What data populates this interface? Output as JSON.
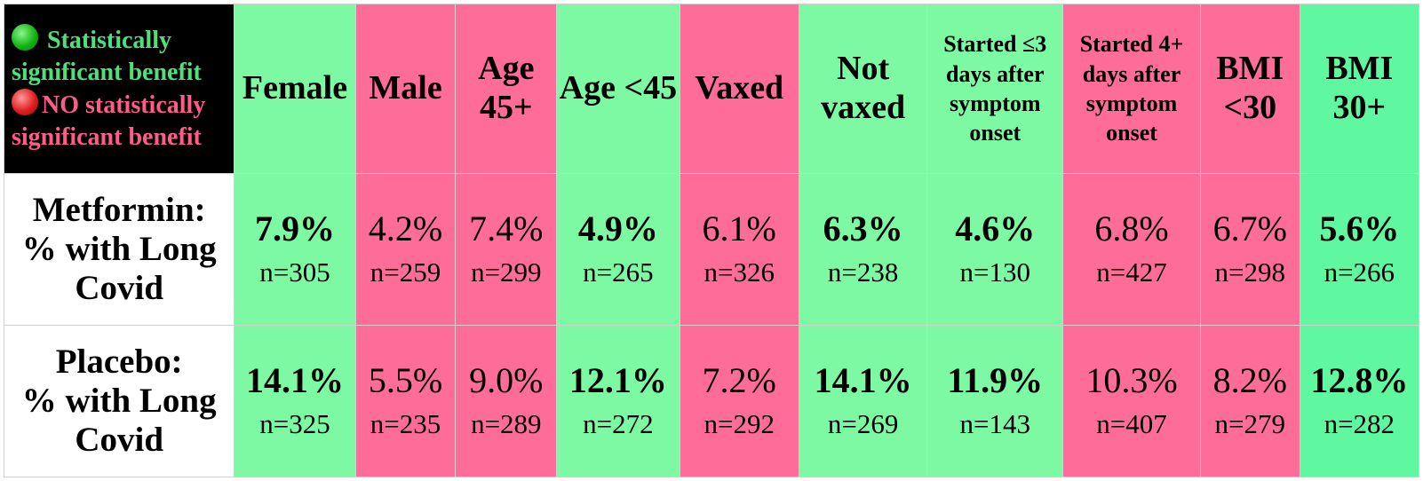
{
  "colors": {
    "significant": "#7cf9a2",
    "not_significant": "#fe6d99",
    "significant_alt": "#5ff7a0",
    "legend_green": "#4fe07d",
    "legend_red": "#ff5c8a"
  },
  "legend": {
    "significant_label": "Statistically",
    "significant_label2": "significant benefit",
    "not_significant_label": "NO statistically",
    "not_significant_label2": "significant benefit"
  },
  "columns": [
    {
      "label": "Female",
      "significant": true
    },
    {
      "label": "Male",
      "significant": false
    },
    {
      "label": "Age 45+",
      "significant": false
    },
    {
      "label": "Age <45",
      "significant": true
    },
    {
      "label": "Vaxed",
      "significant": false
    },
    {
      "label": "Not vaxed",
      "significant": true
    },
    {
      "label": "Started ≤3 days after symptom onset",
      "significant": true
    },
    {
      "label": "Started 4+ days after symptom onset",
      "significant": false
    },
    {
      "label": "BMI <30",
      "significant": false
    },
    {
      "label": "BMI 30+",
      "significant": true
    }
  ],
  "rows": [
    {
      "label_line1": "Metformin:",
      "label_line2": "% with Long",
      "label_line3": "Covid",
      "cells": [
        {
          "pct": "7.9%",
          "n": "n=305"
        },
        {
          "pct": "4.2%",
          "n": "n=259"
        },
        {
          "pct": "7.4%",
          "n": "n=299"
        },
        {
          "pct": "4.9%",
          "n": "n=265"
        },
        {
          "pct": "6.1%",
          "n": "n=326"
        },
        {
          "pct": "6.3%",
          "n": "n=238"
        },
        {
          "pct": "4.6%",
          "n": "n=130"
        },
        {
          "pct": "6.8%",
          "n": "n=427"
        },
        {
          "pct": "6.7%",
          "n": "n=298"
        },
        {
          "pct": "5.6%",
          "n": "n=266"
        }
      ]
    },
    {
      "label_line1": "Placebo:",
      "label_line2": "% with Long",
      "label_line3": "Covid",
      "cells": [
        {
          "pct": "14.1%",
          "n": "n=325"
        },
        {
          "pct": "5.5%",
          "n": "n=235"
        },
        {
          "pct": "9.0%",
          "n": "n=289"
        },
        {
          "pct": "12.1%",
          "n": "n=272"
        },
        {
          "pct": "7.2%",
          "n": "n=292"
        },
        {
          "pct": "14.1%",
          "n": "n=269"
        },
        {
          "pct": "11.9%",
          "n": "n=143"
        },
        {
          "pct": "10.3%",
          "n": "n=407"
        },
        {
          "pct": "8.2%",
          "n": "n=279"
        },
        {
          "pct": "12.8%",
          "n": "n=282"
        }
      ]
    }
  ],
  "chart_data": {
    "type": "table",
    "columns": [
      "Female",
      "Male",
      "Age 45+",
      "Age <45",
      "Vaxed",
      "Not vaxed",
      "Started ≤3 days after symptom onset",
      "Started 4+ days after symptom onset",
      "BMI <30",
      "BMI 30+"
    ],
    "significant": [
      true,
      false,
      false,
      true,
      false,
      true,
      true,
      false,
      false,
      true
    ],
    "series": [
      {
        "name": "Metformin: % with Long Covid",
        "values": [
          7.9,
          4.2,
          7.4,
          4.9,
          6.1,
          6.3,
          4.6,
          6.8,
          6.7,
          5.6
        ],
        "n": [
          305,
          259,
          299,
          265,
          326,
          238,
          130,
          427,
          298,
          266
        ]
      },
      {
        "name": "Placebo: % with Long Covid",
        "values": [
          14.1,
          5.5,
          9.0,
          12.1,
          7.2,
          14.1,
          11.9,
          10.3,
          8.2,
          12.8
        ],
        "n": [
          325,
          235,
          289,
          272,
          292,
          269,
          143,
          407,
          279,
          282
        ]
      }
    ]
  }
}
